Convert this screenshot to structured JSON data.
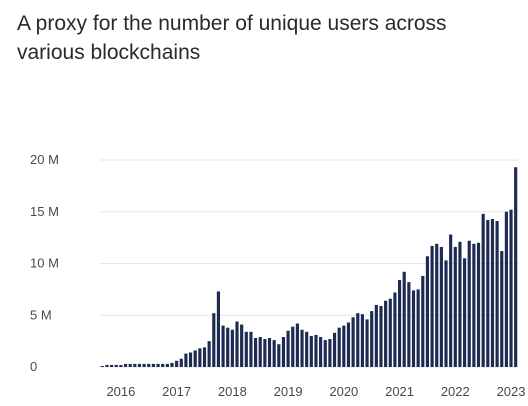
{
  "chart_data": {
    "type": "bar",
    "title": "A proxy for the number of unique users across various blockchains",
    "ylim": [
      0,
      20
    ],
    "y_ticks": [
      {
        "value": 0,
        "label": "0"
      },
      {
        "value": 5,
        "label": "5 M"
      },
      {
        "value": 10,
        "label": "10 M"
      },
      {
        "value": 15,
        "label": "15 M"
      },
      {
        "value": 20,
        "label": "20 M"
      }
    ],
    "x_ticks": [
      "2016",
      "2017",
      "2018",
      "2019",
      "2020",
      "2021",
      "2022",
      "2023"
    ],
    "x_tick_index": [
      4,
      16,
      28,
      40,
      52,
      64,
      76,
      88
    ],
    "grid": true,
    "legend": "none",
    "bar_color": "#1d2b52",
    "grid_color": "#e6e6e6",
    "unit": "millions",
    "values": [
      0.1,
      0.2,
      0.2,
      0.2,
      0.2,
      0.3,
      0.3,
      0.3,
      0.3,
      0.3,
      0.3,
      0.3,
      0.3,
      0.3,
      0.3,
      0.4,
      0.6,
      0.8,
      1.3,
      1.4,
      1.6,
      1.8,
      1.9,
      2.5,
      5.2,
      7.3,
      4.0,
      3.8,
      3.6,
      4.4,
      4.1,
      3.4,
      3.4,
      2.8,
      2.9,
      2.7,
      2.8,
      2.6,
      2.2,
      2.9,
      3.5,
      3.9,
      4.2,
      3.6,
      3.4,
      3.0,
      3.1,
      2.9,
      2.6,
      2.7,
      3.3,
      3.8,
      4.0,
      4.3,
      4.8,
      5.2,
      5.1,
      4.6,
      5.4,
      6.0,
      5.9,
      6.4,
      6.6,
      7.2,
      8.4,
      9.2,
      8.2,
      7.4,
      7.5,
      8.8,
      10.7,
      11.7,
      11.9,
      11.6,
      10.3,
      12.8,
      11.6,
      12.1,
      10.5,
      12.2,
      11.9,
      12.0,
      14.8,
      14.2,
      14.3,
      14.1,
      11.2,
      15.0,
      15.2,
      19.3
    ]
  }
}
